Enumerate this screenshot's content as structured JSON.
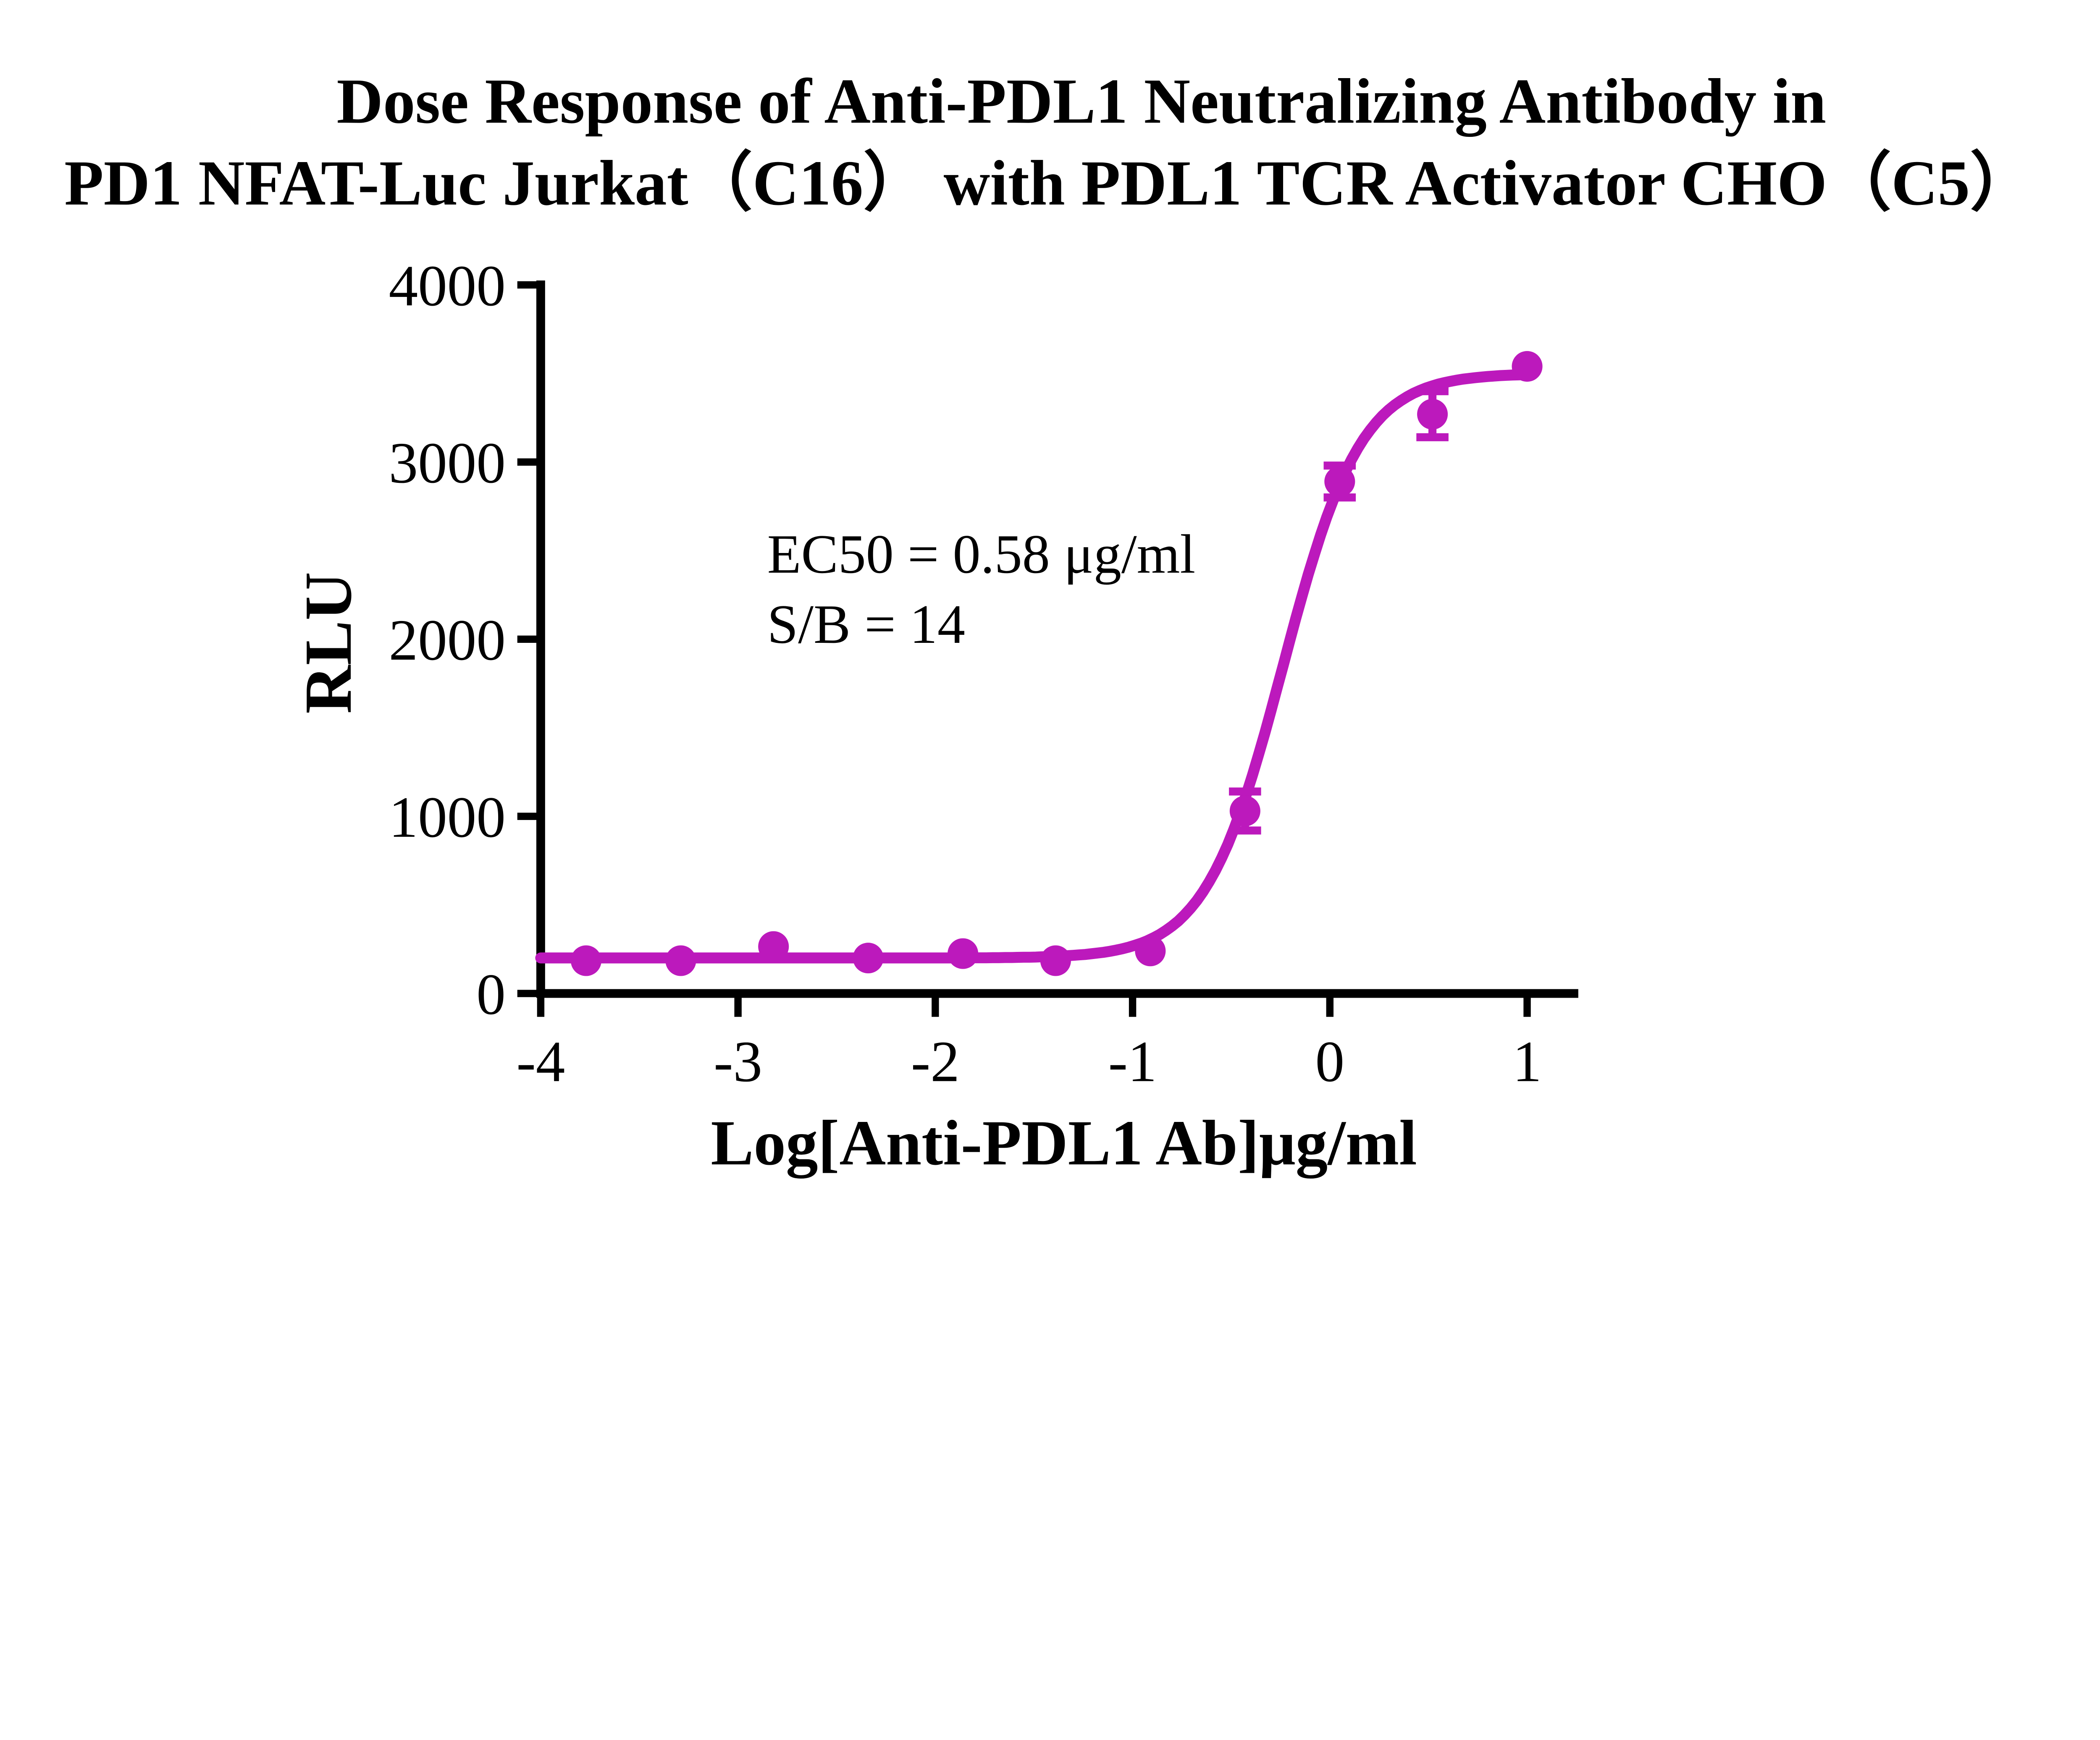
{
  "title": {
    "line1": "Dose Response of Anti-PDL1 Neutralizing Antibody in",
    "line2": "PD1 NFAT-Luc Jurkat（C16） with PDL1 TCR Activator CHO（C5）"
  },
  "annotation": {
    "ec50": "EC50 = 0.58 μg/ml",
    "sb": "S/B = 14"
  },
  "chart_data": {
    "type": "scatter",
    "title": "Dose Response of Anti-PDL1 Neutralizing Antibody in PD1 NFAT-Luc Jurkat（C16） with PDL1 TCR Activator CHO（C5）",
    "xlabel": "Log[Anti-PDL1 Ab]μg/ml",
    "ylabel": "RLU",
    "xlim": [
      -4,
      1
    ],
    "ylim": [
      0,
      4000
    ],
    "x_ticks": [
      -4,
      -3,
      -2,
      -1,
      0,
      1
    ],
    "y_ticks": [
      0,
      1000,
      2000,
      3000,
      4000
    ],
    "grid": false,
    "legend": "none",
    "series_color": "#BC19BC",
    "ec50_ug_ml": 0.58,
    "signal_over_background": 14,
    "points": [
      {
        "x": -3.77,
        "y": 185
      },
      {
        "x": -3.29,
        "y": 185
      },
      {
        "x": -2.82,
        "y": 265
      },
      {
        "x": -2.34,
        "y": 200
      },
      {
        "x": -1.86,
        "y": 225
      },
      {
        "x": -1.39,
        "y": 185
      },
      {
        "x": -0.91,
        "y": 240
      },
      {
        "x": -0.43,
        "y": 1030,
        "err": 110
      },
      {
        "x": 0.05,
        "y": 2890,
        "err": 90
      },
      {
        "x": 0.52,
        "y": 3270,
        "err": 130
      },
      {
        "x": 1.0,
        "y": 3540
      }
    ],
    "fit": {
      "model": "4PL",
      "bottom": 200,
      "top": 3500,
      "log_ec50": -0.237,
      "hill": 2.2
    }
  }
}
